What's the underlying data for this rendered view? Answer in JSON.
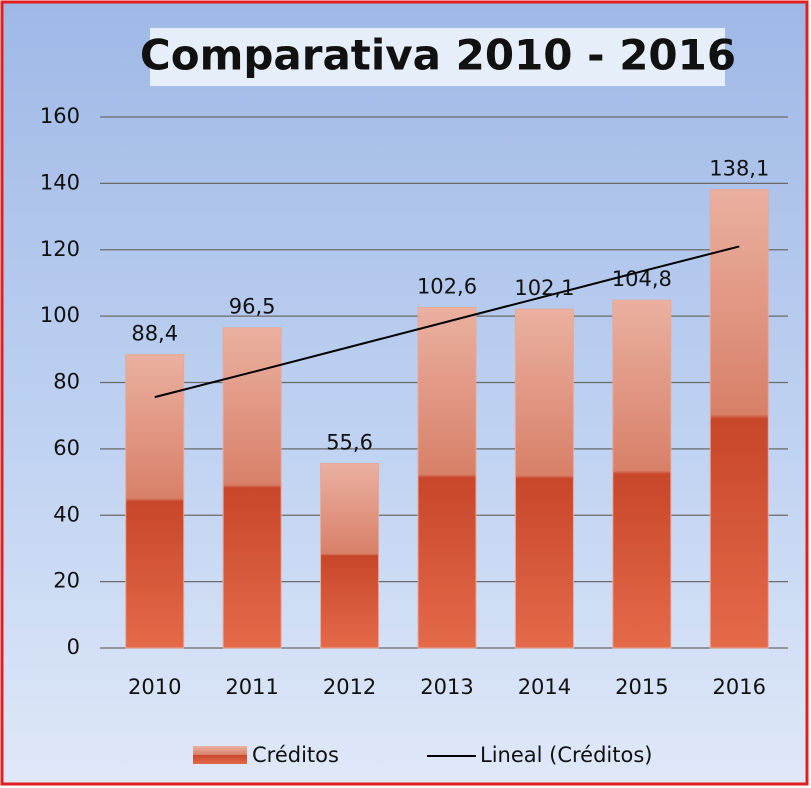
{
  "chart_data": {
    "type": "bar",
    "title": "Comparativa 2010 - 2016",
    "categories": [
      "2010",
      "2011",
      "2012",
      "2013",
      "2014",
      "2015",
      "2016"
    ],
    "series": [
      {
        "name": "Créditos",
        "color": "#d2522f",
        "values": [
          88.4,
          96.5,
          55.6,
          102.6,
          102.1,
          104.8,
          138.1
        ],
        "value_labels": [
          "88,4",
          "96,5",
          "55,6",
          "102,6",
          "102,1",
          "104,8",
          "138,1"
        ]
      }
    ],
    "trendline": {
      "name": "Lineal (Créditos)",
      "color": "#000000",
      "values": [
        75.6,
        83.1,
        90.7,
        98.3,
        105.9,
        113.5,
        121.0
      ]
    },
    "ylim": [
      0,
      160
    ],
    "yticks": [
      0,
      20,
      40,
      60,
      80,
      100,
      120,
      140,
      160
    ],
    "grid": true
  }
}
